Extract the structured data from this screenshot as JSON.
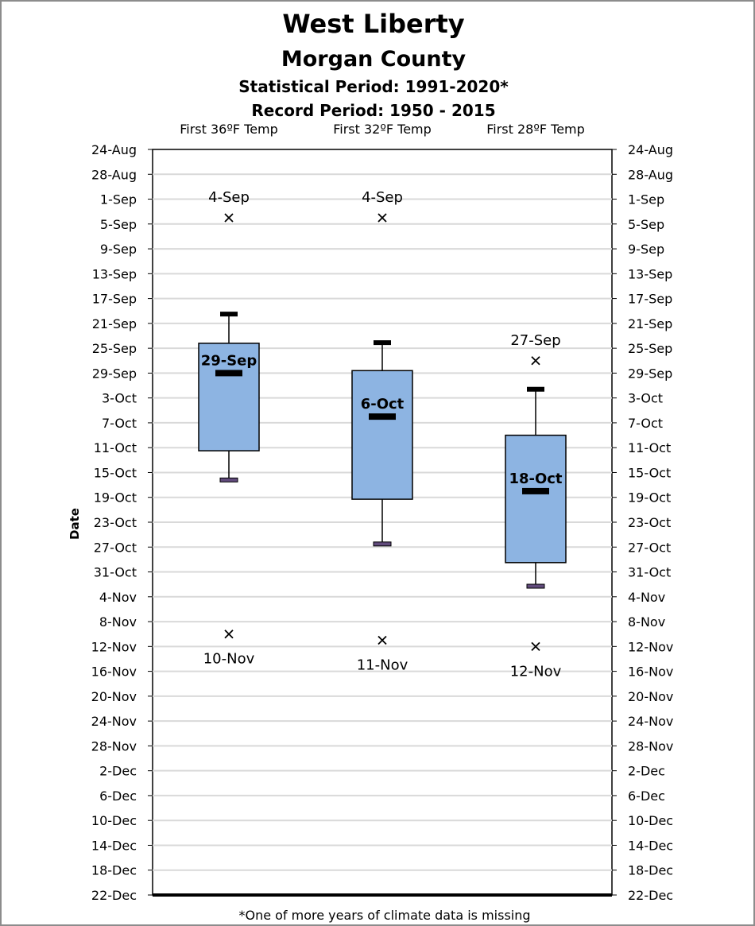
{
  "chart_data": {
    "type": "box",
    "title": "West Liberty",
    "subtitle": "Morgan County",
    "statistical_period": "Statistical Period: 1991-2020*",
    "record_period": "Record Period: 1950 - 2015",
    "ylabel": "Date",
    "footnote": "*One of more years of climate data is missing",
    "y_axis": {
      "reversed": true,
      "unit": "day-of-year",
      "ylim": [
        236,
        356
      ],
      "ticks": [
        {
          "label": "24-Aug",
          "value": 236
        },
        {
          "label": "28-Aug",
          "value": 240
        },
        {
          "label": "1-Sep",
          "value": 244
        },
        {
          "label": "5-Sep",
          "value": 248
        },
        {
          "label": "9-Sep",
          "value": 252
        },
        {
          "label": "13-Sep",
          "value": 256
        },
        {
          "label": "17-Sep",
          "value": 260
        },
        {
          "label": "21-Sep",
          "value": 264
        },
        {
          "label": "25-Sep",
          "value": 268
        },
        {
          "label": "29-Sep",
          "value": 272
        },
        {
          "label": "3-Oct",
          "value": 276
        },
        {
          "label": "7-Oct",
          "value": 280
        },
        {
          "label": "11-Oct",
          "value": 284
        },
        {
          "label": "15-Oct",
          "value": 288
        },
        {
          "label": "19-Oct",
          "value": 292
        },
        {
          "label": "23-Oct",
          "value": 296
        },
        {
          "label": "27-Oct",
          "value": 300
        },
        {
          "label": "31-Oct",
          "value": 304
        },
        {
          "label": "4-Nov",
          "value": 308
        },
        {
          "label": "8-Nov",
          "value": 312
        },
        {
          "label": "12-Nov",
          "value": 316
        },
        {
          "label": "16-Nov",
          "value": 320
        },
        {
          "label": "20-Nov",
          "value": 324
        },
        {
          "label": "24-Nov",
          "value": 328
        },
        {
          "label": "28-Nov",
          "value": 332
        },
        {
          "label": "2-Dec",
          "value": 336
        },
        {
          "label": "6-Dec",
          "value": 340
        },
        {
          "label": "10-Dec",
          "value": 344
        },
        {
          "label": "14-Dec",
          "value": 348
        },
        {
          "label": "18-Dec",
          "value": 352
        },
        {
          "label": "22-Dec",
          "value": 356
        }
      ]
    },
    "grid": true,
    "colors": {
      "box_fill": "#8db4e2",
      "box_stroke": "#000000",
      "grid": "#d9d9d9",
      "min_cap": "#604a7b"
    },
    "categories": [
      "First 36ºF Temp",
      "First 32ºF Temp",
      "First 28ºF Temp"
    ],
    "series": [
      {
        "category": "First 36ºF Temp",
        "earliest": 247,
        "earliest_label": "4-Sep",
        "whisker_low": 262.5,
        "q1": 267.2,
        "median": 272,
        "q3": 284.5,
        "whisker_high": 289.2,
        "median_label": "29-Sep",
        "latest": 314,
        "latest_label": "10-Nov"
      },
      {
        "category": "First 32ºF Temp",
        "earliest": 247,
        "earliest_label": "4-Sep",
        "whisker_low": 267.1,
        "q1": 271.6,
        "median": 279,
        "q3": 292.3,
        "whisker_high": 299.5,
        "median_label": "6-Oct",
        "latest": 315,
        "latest_label": "11-Nov"
      },
      {
        "category": "First 28ºF Temp",
        "earliest": 270,
        "earliest_label": "27-Sep",
        "whisker_low": 274.6,
        "q1": 282,
        "median": 291,
        "q3": 302.5,
        "whisker_high": 306.3,
        "median_label": "18-Oct",
        "latest": 316,
        "latest_label": "12-Nov"
      }
    ]
  }
}
